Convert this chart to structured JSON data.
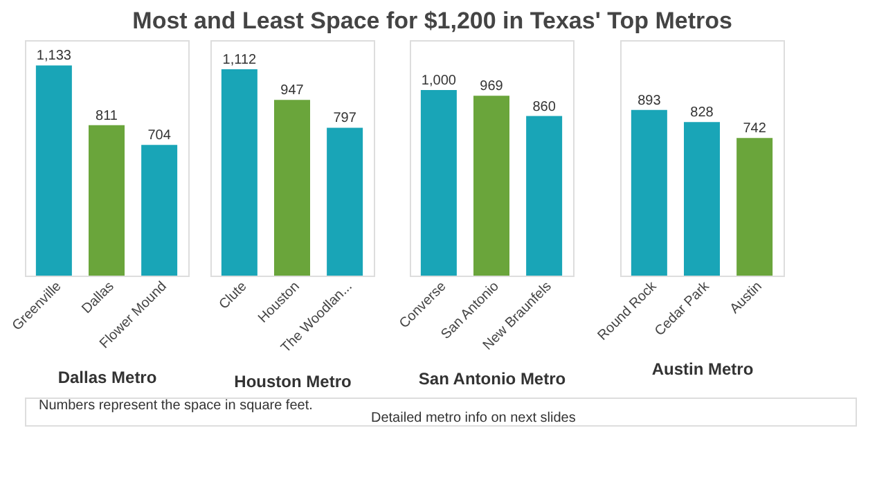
{
  "chart_data": [
    {
      "type": "bar",
      "title": "Most and Least Space for $1,200 in Texas' Top Metros",
      "xlabel": "Dallas Metro",
      "categories": [
        "Greenville",
        "Dallas",
        "Flower Mound"
      ],
      "values": [
        1133,
        811,
        704
      ],
      "colors": [
        "#19a5b7",
        "#6aa53b",
        "#19a5b7"
      ],
      "value_labels": [
        "1,133",
        "811",
        "704"
      ],
      "annotations": [
        "Numbers represent the space in square feet.",
        "Detailed metro info on next slides"
      ]
    },
    {
      "type": "bar",
      "xlabel": "Houston Metro",
      "categories": [
        "Clute",
        "Houston",
        "The Woodlan..."
      ],
      "values": [
        1112,
        947,
        797
      ],
      "colors": [
        "#19a5b7",
        "#6aa53b",
        "#19a5b7"
      ],
      "value_labels": [
        "1,112",
        "947",
        "797"
      ]
    },
    {
      "type": "bar",
      "xlabel": "San Antonio Metro",
      "categories": [
        "Converse",
        "San Antonio",
        "New Braunfels"
      ],
      "values": [
        1000,
        969,
        860
      ],
      "colors": [
        "#19a5b7",
        "#6aa53b",
        "#19a5b7"
      ],
      "value_labels": [
        "1,000",
        "969",
        "860"
      ]
    },
    {
      "type": "bar",
      "xlabel": "Austin Metro",
      "categories": [
        "Round Rock",
        "Cedar Park",
        "Austin"
      ],
      "values": [
        893,
        828,
        742
      ],
      "colors": [
        "#19a5b7",
        "#19a5b7",
        "#6aa53b"
      ],
      "value_labels": [
        "893",
        "828",
        "742"
      ]
    }
  ]
}
